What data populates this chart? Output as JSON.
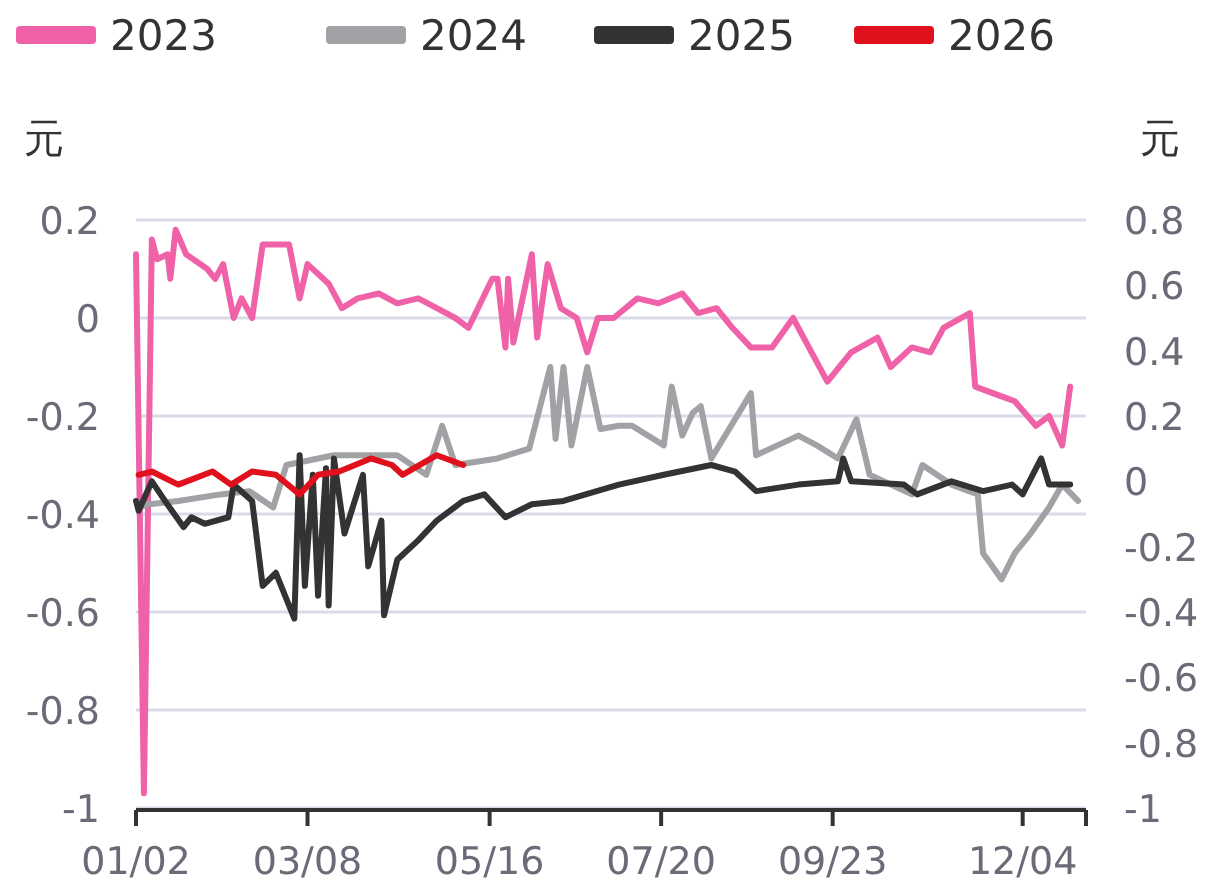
{
  "chart_data": {
    "type": "line",
    "ylabel": "元",
    "y2label": "元",
    "legend": "top",
    "grid": "y",
    "xlim": [
      "--01-02",
      "--12-28"
    ],
    "xticks": [
      {
        "value": "--01-02",
        "label": "01/02"
      },
      {
        "value": "--03-08",
        "label": "03/08"
      },
      {
        "value": "--05-16",
        "label": "05/16"
      },
      {
        "value": "--07-20",
        "label": "07/20"
      },
      {
        "value": "--09-23",
        "label": "09/23"
      },
      {
        "value": "--12-04",
        "label": "12/04"
      },
      {
        "value": "--12-28",
        "label": null
      }
    ],
    "ylim": [
      -1,
      0.2
    ],
    "yticks": [
      -1,
      -0.8,
      -0.6,
      -0.4,
      -0.2,
      0,
      0.2
    ],
    "y2lim": [
      -1,
      0.8
    ],
    "y2ticks": [
      -1,
      -0.8,
      -0.6,
      -0.4,
      -0.2,
      0,
      0.2,
      0.4,
      0.6,
      0.8
    ],
    "series": [
      {
        "name": "2023",
        "color": "#f062a8",
        "x": [
          "--01-02",
          "--01-05",
          "--01-08",
          "--01-10",
          "--01-14",
          "--01-15",
          "--01-17",
          "--01-21",
          "--01-29",
          "--02-01",
          "--02-04",
          "--02-08",
          "--02-11",
          "--02-15",
          "--02-19",
          "--03-01",
          "--03-05",
          "--03-08",
          "--03-16",
          "--03-21",
          "--03-27",
          "--04-04",
          "--04-11",
          "--04-19",
          "--04-26",
          "--05-03",
          "--05-08",
          "--05-17",
          "--05-19",
          "--05-22",
          "--05-23",
          "--05-25",
          "--06-01",
          "--06-03",
          "--06-07",
          "--06-12",
          "--06-18",
          "--06-22",
          "--06-26",
          "--07-02",
          "--07-11",
          "--07-19",
          "--07-28",
          "--08-03",
          "--08-10",
          "--08-16",
          "--08-23",
          "--08-31",
          "--09-08",
          "--09-15",
          "--09-21",
          "--09-30",
          "--10-10",
          "--10-15",
          "--10-23",
          "--10-30",
          "--11-04",
          "--11-14",
          "--11-16",
          "--11-26",
          "--12-01",
          "--12-09",
          "--12-14",
          "--12-19",
          "--12-22"
        ],
        "values": [
          0.13,
          -0.97,
          0.16,
          0.12,
          0.13,
          0.08,
          0.18,
          0.13,
          0.1,
          0.08,
          0.11,
          0.0,
          0.04,
          0.0,
          0.15,
          0.15,
          0.04,
          0.11,
          0.07,
          0.02,
          0.04,
          0.05,
          0.03,
          0.04,
          0.02,
          0.0,
          -0.02,
          0.08,
          0.08,
          -0.06,
          0.08,
          -0.05,
          0.13,
          -0.04,
          0.11,
          0.02,
          0.0,
          -0.07,
          0.0,
          0.0,
          0.04,
          0.03,
          0.05,
          0.01,
          0.02,
          -0.02,
          -0.06,
          -0.06,
          0.0,
          -0.07,
          -0.13,
          -0.07,
          -0.04,
          -0.1,
          -0.06,
          -0.07,
          -0.02,
          0.01,
          -0.14,
          -0.16,
          -0.17,
          -0.22,
          -0.2,
          -0.26,
          -0.14
        ]
      },
      {
        "name": "2024",
        "color": "#a0a2a5",
        "axis": "y2",
        "x": [
          "--01-03",
          "--01-07",
          "--01-18",
          "--02-03",
          "--02-14",
          "--02-23",
          "--02-28",
          "--03-18",
          "--04-11",
          "--04-22",
          "--04-28",
          "--05-03",
          "--05-19",
          "--05-31",
          "--06-08",
          "--06-10",
          "--06-13",
          "--06-16",
          "--06-22",
          "--06-27",
          "--07-04",
          "--07-09",
          "--07-21",
          "--07-24",
          "--07-28",
          "--08-01",
          "--08-04",
          "--08-08",
          "--08-23",
          "--08-25",
          "--09-10",
          "--09-17",
          "--09-25",
          "--10-02",
          "--10-07",
          "--10-23",
          "--10-27",
          "--11-07",
          "--11-17",
          "--11-19",
          "--11-26",
          "--12-01",
          "--12-07",
          "--12-14",
          "--12-19",
          "--12-25"
        ],
        "values": [
          -0.08,
          -0.07,
          -0.06,
          -0.04,
          -0.03,
          -0.08,
          0.05,
          0.08,
          0.08,
          0.02,
          0.17,
          0.05,
          0.07,
          0.1,
          0.35,
          0.13,
          0.35,
          0.11,
          0.35,
          0.16,
          0.17,
          0.17,
          0.11,
          0.29,
          0.14,
          0.21,
          0.23,
          0.07,
          0.27,
          0.08,
          0.14,
          0.11,
          0.07,
          0.19,
          0.02,
          -0.04,
          0.05,
          -0.01,
          -0.04,
          -0.22,
          -0.3,
          -0.22,
          -0.16,
          -0.08,
          -0.01,
          -0.06
        ]
      },
      {
        "name": "2025",
        "color": "#333333",
        "axis": "y2",
        "x": [
          "--01-02",
          "--01-03",
          "--01-08",
          "--01-13",
          "--01-20",
          "--01-23",
          "--01-28",
          "--02-06",
          "--02-08",
          "--02-15",
          "--02-19",
          "--02-24",
          "--03-03",
          "--03-05",
          "--03-07",
          "--03-10",
          "--03-12",
          "--03-15",
          "--03-16",
          "--03-18",
          "--03-22",
          "--03-29",
          "--03-31",
          "--04-05",
          "--04-06",
          "--04-11",
          "--04-19",
          "--04-26",
          "--05-06",
          "--05-14",
          "--05-22",
          "--06-01",
          "--06-13",
          "--07-04",
          "--07-21",
          "--08-08",
          "--08-17",
          "--08-25",
          "--09-10",
          "--09-25",
          "--09-27",
          "--09-30",
          "--10-20",
          "--10-25",
          "--11-07",
          "--11-19",
          "--11-30",
          "--12-04",
          "--12-11",
          "--12-14",
          "--12-22"
        ],
        "values": [
          -0.06,
          -0.09,
          0.0,
          -0.06,
          -0.14,
          -0.11,
          -0.13,
          -0.11,
          -0.01,
          -0.06,
          -0.32,
          -0.28,
          -0.42,
          0.08,
          -0.32,
          0.02,
          -0.35,
          0.04,
          -0.38,
          0.07,
          -0.16,
          0.02,
          -0.26,
          -0.12,
          -0.41,
          -0.24,
          -0.18,
          -0.12,
          -0.06,
          -0.04,
          -0.11,
          -0.07,
          -0.06,
          -0.01,
          0.02,
          0.05,
          0.03,
          -0.03,
          -0.01,
          0.0,
          0.07,
          0.0,
          -0.01,
          -0.04,
          0.0,
          -0.03,
          -0.01,
          -0.04,
          0.07,
          -0.01,
          -0.01
        ]
      },
      {
        "name": "2026",
        "color": "#e0101c",
        "axis": "y2",
        "x": [
          "--01-03",
          "--01-08",
          "--01-18",
          "--01-31",
          "--02-07",
          "--02-15",
          "--02-24",
          "--03-05",
          "--03-12",
          "--03-20",
          "--04-01",
          "--04-09",
          "--04-13",
          "--04-26",
          "--05-06"
        ],
        "values": [
          0.02,
          0.03,
          -0.01,
          0.03,
          -0.01,
          0.03,
          0.02,
          -0.04,
          0.02,
          0.03,
          0.07,
          0.05,
          0.02,
          0.08,
          0.05
        ]
      }
    ]
  }
}
